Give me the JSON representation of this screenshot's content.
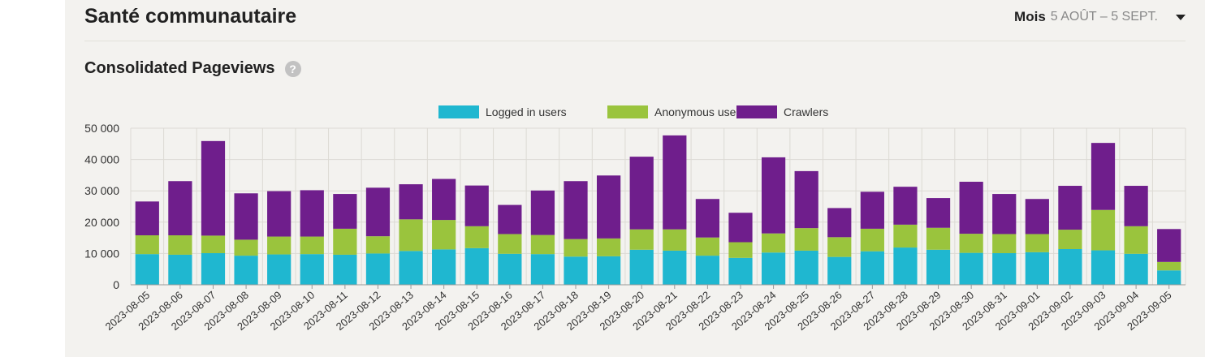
{
  "header": {
    "title": "Santé communautaire",
    "range_label": "Mois",
    "range_value": "5 AOÛT – 5 SEPT."
  },
  "section": {
    "title": "Consolidated Pageviews",
    "help_icon": "question-circle-icon"
  },
  "colors": {
    "logged_in": "#1fb7d0",
    "anonymous": "#9ac43d",
    "crawlers": "#6f1e8c",
    "panel_bg": "#f3f2ef"
  },
  "chart_data": {
    "type": "bar",
    "stacked": true,
    "categories": [
      "2023-08-05",
      "2023-08-06",
      "2023-08-07",
      "2023-08-08",
      "2023-08-09",
      "2023-08-10",
      "2023-08-11",
      "2023-08-12",
      "2023-08-13",
      "2023-08-14",
      "2023-08-15",
      "2023-08-16",
      "2023-08-17",
      "2023-08-18",
      "2023-08-19",
      "2023-08-20",
      "2023-08-21",
      "2023-08-22",
      "2023-08-23",
      "2023-08-24",
      "2023-08-25",
      "2023-08-26",
      "2023-08-27",
      "2023-08-28",
      "2023-08-29",
      "2023-08-30",
      "2023-08-31",
      "2023-09-01",
      "2023-09-02",
      "2023-09-03",
      "2023-09-04",
      "2023-09-05"
    ],
    "series": [
      {
        "name": "Logged in users",
        "color": "#1fb7d0",
        "values": [
          9800,
          9600,
          10100,
          9300,
          9700,
          9800,
          9600,
          10000,
          10800,
          11300,
          11700,
          9900,
          9800,
          9000,
          9100,
          11200,
          10900,
          9300,
          8600,
          10300,
          10900,
          8900,
          10700,
          11900,
          11200,
          10200,
          10100,
          10400,
          11400,
          11000,
          9900,
          4600
        ]
      },
      {
        "name": "Anonymous users",
        "color": "#9ac43d",
        "values": [
          6000,
          6200,
          5600,
          5100,
          5700,
          5600,
          8300,
          5500,
          10100,
          9400,
          7000,
          6300,
          6100,
          5600,
          5700,
          6500,
          6800,
          5800,
          5000,
          6100,
          7200,
          6300,
          7200,
          7300,
          7000,
          6100,
          6100,
          5800,
          6200,
          12900,
          8800,
          2700
        ]
      },
      {
        "name": "Crawlers",
        "color": "#6f1e8c",
        "values": [
          10800,
          17300,
          30200,
          14800,
          14500,
          14800,
          11100,
          15500,
          11200,
          13100,
          13000,
          9300,
          14200,
          18500,
          20100,
          23200,
          30000,
          12300,
          9400,
          24300,
          18200,
          9300,
          11800,
          12100,
          9500,
          16600,
          12800,
          11200,
          14000,
          21400,
          12900,
          10500
        ]
      }
    ],
    "ylim": [
      0,
      50000
    ],
    "yticks": [
      0,
      10000,
      20000,
      30000,
      40000,
      50000
    ],
    "ytick_labels": [
      "0",
      "10 000",
      "20 000",
      "30 000",
      "40 000",
      "50 000"
    ],
    "grid": true,
    "legend_position": "top-center",
    "xlabel": "",
    "ylabel": ""
  }
}
